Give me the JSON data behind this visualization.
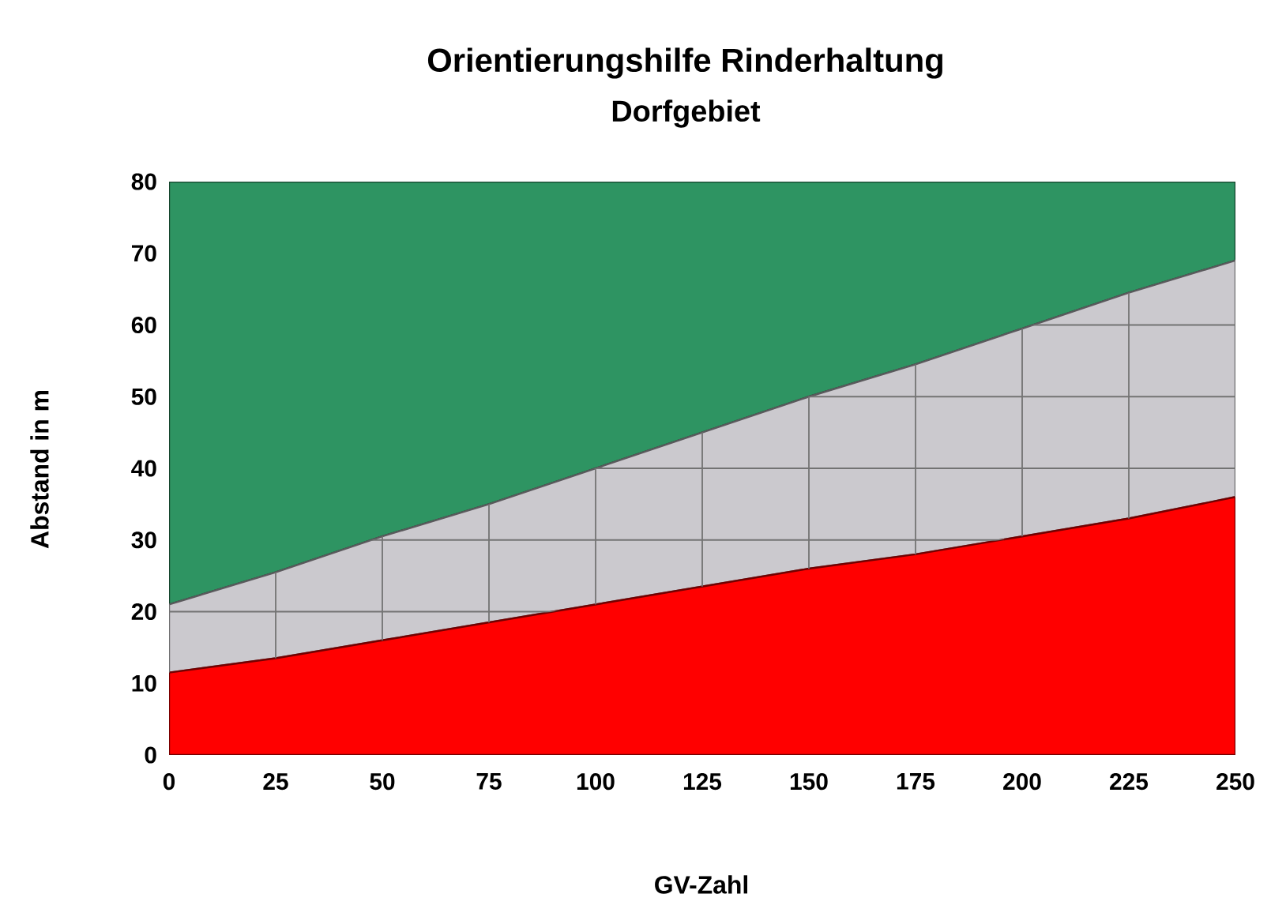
{
  "chart_data": {
    "type": "area",
    "title": "Orientierungshilfe Rinderhaltung",
    "subtitle": "Dorfgebiet",
    "xlabel": "GV-Zahl",
    "ylabel": "Abstand in m",
    "x": [
      0,
      25,
      50,
      75,
      100,
      125,
      150,
      175,
      200,
      225,
      250
    ],
    "stacked": true,
    "series": [
      {
        "color": "#ff0000",
        "values": [
          11.5,
          13.5,
          16,
          18.5,
          21,
          23.5,
          26,
          28,
          30.5,
          33,
          36
        ]
      },
      {
        "color": "#cbc9ce",
        "values": [
          9.5,
          12,
          14.5,
          16.5,
          19,
          21.5,
          24,
          26.5,
          29,
          31.5,
          33
        ]
      },
      {
        "color": "#2e9462",
        "values": [
          59,
          54.5,
          49.5,
          45,
          40,
          35,
          30,
          25.5,
          20.5,
          15.5,
          11
        ]
      }
    ],
    "xlim": [
      0,
      250
    ],
    "ylim": [
      0,
      80
    ],
    "xticks": [
      0,
      25,
      50,
      75,
      100,
      125,
      150,
      175,
      200,
      225,
      250
    ],
    "yticks": [
      0,
      10,
      20,
      30,
      40,
      50,
      60,
      70,
      80
    ],
    "grid": true
  }
}
